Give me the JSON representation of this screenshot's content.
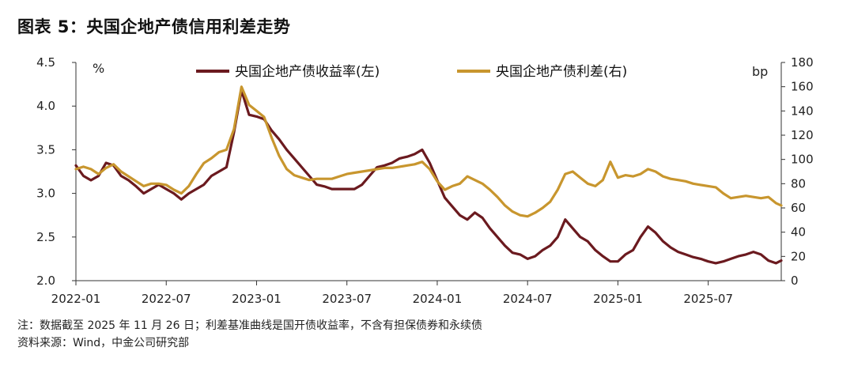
{
  "title": "图表 5：央国企地产债信用利差走势",
  "notes": {
    "line1": "注：数据截至 2025 年 11 月 26 日；利差基准曲线是国开债收益率，不含有担保债券和永续债",
    "line2": "资料来源：Wind，中金公司研究部"
  },
  "colors": {
    "yield": "#6b1a1f",
    "spread": "#c8962e",
    "axis": "#333333"
  },
  "chart_data": {
    "type": "line",
    "title": "图表 5：央国企地产债信用利差走势",
    "xlabel": "",
    "ylabel_left": "%",
    "ylabel_right": "bp",
    "ylim_left": [
      2.0,
      4.5
    ],
    "ylim_right": [
      0,
      180
    ],
    "yticks_left": [
      "2.0",
      "2.5",
      "3.0",
      "3.5",
      "4.0",
      "4.5"
    ],
    "yticks_right": [
      "0",
      "20",
      "40",
      "60",
      "80",
      "100",
      "120",
      "140",
      "160",
      "180"
    ],
    "xticks": [
      {
        "label": "2022-01",
        "t": 0
      },
      {
        "label": "2022-07",
        "t": 6
      },
      {
        "label": "2023-01",
        "t": 12
      },
      {
        "label": "2023-07",
        "t": 18
      },
      {
        "label": "2024-01",
        "t": 24
      },
      {
        "label": "2024-07",
        "t": 30
      },
      {
        "label": "2025-01",
        "t": 36
      },
      {
        "label": "2025-07",
        "t": 42
      }
    ],
    "t_range": [
      0,
      46.85
    ],
    "series": [
      {
        "name": "央国企地产债收益率(左)",
        "axis": "left",
        "t": [
          0,
          0.5,
          1,
          1.5,
          2,
          2.5,
          3,
          3.5,
          4,
          4.5,
          5,
          5.5,
          6,
          6.5,
          7,
          7.5,
          8,
          8.5,
          9,
          9.5,
          10,
          10.5,
          11,
          11.5,
          12,
          12.5,
          13,
          13.5,
          14,
          14.5,
          15,
          15.5,
          16,
          16.5,
          17,
          17.5,
          18,
          18.5,
          19,
          19.5,
          20,
          20.5,
          21,
          21.5,
          22,
          22.5,
          23,
          23.5,
          24,
          24.5,
          25,
          25.5,
          26,
          26.5,
          27,
          27.5,
          28,
          28.5,
          29,
          29.5,
          30,
          30.5,
          31,
          31.5,
          32,
          32.5,
          33,
          33.5,
          34,
          34.5,
          35,
          35.5,
          36,
          36.5,
          37,
          37.5,
          38,
          38.5,
          39,
          39.5,
          40,
          40.5,
          41,
          41.5,
          42,
          42.5,
          43,
          43.5,
          44,
          44.5,
          45,
          45.5,
          46,
          46.5,
          46.85
        ],
        "values": [
          3.32,
          3.2,
          3.15,
          3.2,
          3.35,
          3.32,
          3.2,
          3.15,
          3.08,
          3.0,
          3.05,
          3.1,
          3.05,
          3.0,
          2.93,
          3.0,
          3.05,
          3.1,
          3.2,
          3.25,
          3.3,
          3.7,
          4.18,
          3.9,
          3.88,
          3.85,
          3.72,
          3.62,
          3.5,
          3.4,
          3.3,
          3.2,
          3.1,
          3.08,
          3.05,
          3.05,
          3.05,
          3.05,
          3.1,
          3.2,
          3.3,
          3.32,
          3.35,
          3.4,
          3.42,
          3.45,
          3.5,
          3.35,
          3.15,
          2.95,
          2.85,
          2.75,
          2.7,
          2.78,
          2.72,
          2.6,
          2.5,
          2.4,
          2.32,
          2.3,
          2.25,
          2.28,
          2.35,
          2.4,
          2.5,
          2.7,
          2.6,
          2.5,
          2.45,
          2.35,
          2.28,
          2.22,
          2.22,
          2.3,
          2.35,
          2.5,
          2.62,
          2.55,
          2.45,
          2.38,
          2.33,
          2.3,
          2.27,
          2.25,
          2.22,
          2.2,
          2.22,
          2.25,
          2.28,
          2.3,
          2.33,
          2.3,
          2.23,
          2.2,
          2.23
        ]
      },
      {
        "name": "央国企地产债利差(右)",
        "axis": "right",
        "t": [
          0,
          0.5,
          1,
          1.5,
          2,
          2.5,
          3,
          3.5,
          4,
          4.5,
          5,
          5.5,
          6,
          6.5,
          7,
          7.5,
          8,
          8.5,
          9,
          9.5,
          10,
          10.5,
          11,
          11.5,
          12,
          12.5,
          13,
          13.5,
          14,
          14.5,
          15,
          15.5,
          16,
          16.5,
          17,
          17.5,
          18,
          18.5,
          19,
          19.5,
          20,
          20.5,
          21,
          21.5,
          22,
          22.5,
          23,
          23.5,
          24,
          24.5,
          25,
          25.5,
          26,
          26.5,
          27,
          27.5,
          28,
          28.5,
          29,
          29.5,
          30,
          30.5,
          31,
          31.5,
          32,
          32.5,
          33,
          33.5,
          34,
          34.5,
          35,
          35.5,
          36,
          36.5,
          37,
          37.5,
          38,
          38.5,
          39,
          39.5,
          40,
          40.5,
          41,
          41.5,
          42,
          42.5,
          43,
          43.5,
          44,
          44.5,
          45,
          45.5,
          46,
          46.5,
          46.85
        ],
        "values": [
          92,
          94,
          92,
          88,
          93,
          96,
          90,
          86,
          82,
          78,
          80,
          80,
          79,
          75,
          72,
          78,
          88,
          97,
          101,
          106,
          108,
          125,
          160,
          145,
          140,
          135,
          118,
          103,
          92,
          87,
          85,
          83,
          84,
          84,
          84,
          86,
          88,
          89,
          90,
          91,
          92,
          93,
          93,
          94,
          95,
          96,
          98,
          92,
          82,
          75,
          78,
          80,
          86,
          83,
          80,
          75,
          69,
          62,
          57,
          54,
          53,
          56,
          60,
          65,
          75,
          88,
          90,
          85,
          80,
          78,
          83,
          98,
          85,
          87,
          86,
          88,
          92,
          90,
          86,
          84,
          83,
          82,
          80,
          79,
          78,
          77,
          72,
          68,
          69,
          70,
          69,
          68,
          69,
          64,
          62
        ]
      }
    ],
    "legend": [
      "央国企地产债收益率(左)",
      "央国企地产债利差(右)"
    ],
    "legend_position": "top"
  }
}
